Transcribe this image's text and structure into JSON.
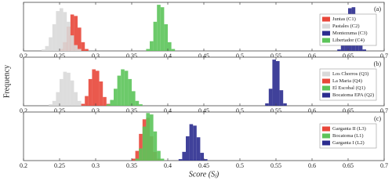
{
  "chart_data": [
    {
      "type": "histogram",
      "panel_label": "(a)",
      "xlim": [
        0.2,
        0.7
      ],
      "ylim": [
        0,
        100
      ],
      "xticks": [
        0.2,
        0.25,
        0.3,
        0.35,
        0.4,
        0.45,
        0.5,
        0.55,
        0.6,
        0.65,
        0.7
      ],
      "series": [
        {
          "name": "Juntas (C1)",
          "color": "#e8473a",
          "bins": [
            0.25,
            0.255,
            0.26,
            0.265,
            0.27,
            0.275,
            0.28,
            0.285,
            0.29
          ],
          "values": [
            4,
            18,
            50,
            75,
            72,
            48,
            18,
            4
          ]
        },
        {
          "name": "Pastales (C2)",
          "color": "#d9d9d9",
          "bins": [
            0.225,
            0.23,
            0.235,
            0.24,
            0.245,
            0.25,
            0.255,
            0.26,
            0.265,
            0.27,
            0.275,
            0.28
          ],
          "values": [
            3,
            10,
            28,
            55,
            82,
            88,
            80,
            60,
            32,
            12,
            4
          ]
        },
        {
          "name": "Montezuma (C3)",
          "color": "#2b2c8f",
          "bins": [
            0.635,
            0.64,
            0.645,
            0.65,
            0.655,
            0.66,
            0.665,
            0.67,
            0.675
          ],
          "values": [
            3,
            15,
            50,
            88,
            90,
            52,
            15,
            3
          ]
        },
        {
          "name": "Libertador (C4)",
          "color": "#5cc45a",
          "bins": [
            0.37,
            0.375,
            0.38,
            0.385,
            0.39,
            0.395,
            0.4,
            0.405,
            0.41
          ],
          "values": [
            4,
            20,
            60,
            95,
            90,
            55,
            18,
            4
          ]
        }
      ]
    },
    {
      "type": "histogram",
      "panel_label": "(b)",
      "ylabel": "Frequency",
      "xlim": [
        0.2,
        0.7
      ],
      "ylim": [
        0,
        100
      ],
      "xticks": [
        0.2,
        0.25,
        0.3,
        0.35,
        0.4,
        0.45,
        0.5,
        0.55,
        0.6,
        0.65,
        0.7
      ],
      "series": [
        {
          "name": "Los Chorros (Q3)",
          "color": "#d9d9d9",
          "bins": [
            0.235,
            0.24,
            0.245,
            0.25,
            0.255,
            0.26,
            0.265,
            0.27,
            0.275,
            0.28,
            0.285
          ],
          "values": [
            3,
            10,
            28,
            55,
            70,
            68,
            52,
            28,
            10,
            3
          ]
        },
        {
          "name": "La Maria (Q4)",
          "color": "#e8473a",
          "bins": [
            0.28,
            0.285,
            0.29,
            0.295,
            0.3,
            0.305,
            0.31,
            0.315,
            0.32
          ],
          "values": [
            4,
            20,
            55,
            75,
            72,
            50,
            18,
            4
          ]
        },
        {
          "name": "El Escobal (Q1)",
          "color": "#5cc45a",
          "bins": [
            0.315,
            0.32,
            0.325,
            0.33,
            0.335,
            0.34,
            0.345,
            0.35,
            0.355,
            0.36,
            0.365
          ],
          "values": [
            3,
            12,
            35,
            62,
            75,
            72,
            55,
            30,
            10,
            3
          ]
        },
        {
          "name": "Bocatoma EPA (Q2)",
          "color": "#2b2c8f",
          "bins": [
            0.535,
            0.54,
            0.545,
            0.55,
            0.555,
            0.56,
            0.565
          ],
          "values": [
            5,
            35,
            95,
            92,
            32,
            5
          ]
        }
      ]
    },
    {
      "type": "histogram",
      "panel_label": "(c)",
      "xlabel": "Score (Sⱼ)",
      "xlim": [
        0.2,
        0.7
      ],
      "ylim": [
        0,
        100
      ],
      "xticks": [
        0.2,
        0.25,
        0.3,
        0.35,
        0.4,
        0.45,
        0.5,
        0.55,
        0.6,
        0.65,
        0.7
      ],
      "series": [
        {
          "name": "Garganta II (L3)",
          "color": "#e8473a",
          "bins": [
            0.35,
            0.355,
            0.36,
            0.365,
            0.37,
            0.375,
            0.38,
            0.385,
            0.39
          ],
          "values": [
            4,
            20,
            55,
            85,
            88,
            50,
            18,
            4
          ]
        },
        {
          "name": "Bocatoma (L1)",
          "color": "#5cc45a",
          "bins": [
            0.355,
            0.36,
            0.365,
            0.37,
            0.375,
            0.38,
            0.385,
            0.39,
            0.395
          ],
          "values": [
            4,
            25,
            70,
            98,
            95,
            60,
            20,
            4
          ]
        },
        {
          "name": "Garganta I (L2)",
          "color": "#2b2c8f",
          "bins": [
            0.415,
            0.42,
            0.425,
            0.43,
            0.435,
            0.44,
            0.445,
            0.45,
            0.455
          ],
          "values": [
            3,
            18,
            50,
            75,
            72,
            48,
            16,
            3
          ]
        }
      ]
    }
  ]
}
